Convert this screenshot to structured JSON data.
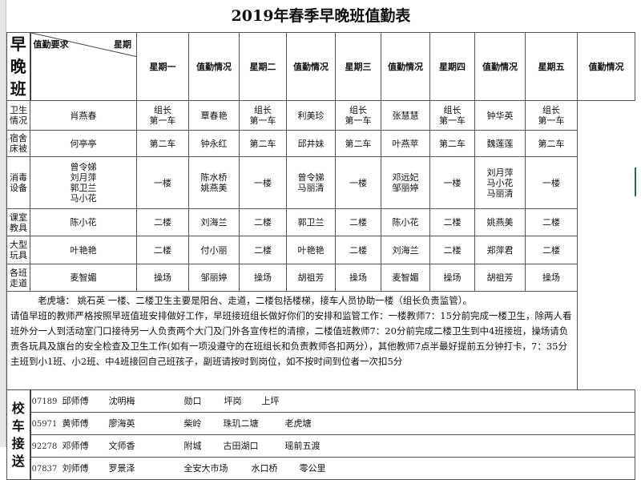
{
  "title": "2019年春季早晚班值勤表",
  "header": {
    "diag_left": "值勤要求",
    "diag_right": "星期",
    "columns": [
      "星期一",
      "值勤情况",
      "星期二",
      "值勤情况",
      "星期三",
      "值勤情况",
      "星期四",
      "值勤情况",
      "星期五",
      "值勤情况"
    ]
  },
  "section_label": "早晚班",
  "rows": [
    {
      "label": "卫生情况",
      "cells": [
        "肖燕春",
        "组长\n第一车",
        "覃春艳",
        "组长\n第一车",
        "利美珍",
        "组长\n第一车",
        "张慧慧",
        "组长\n第一车",
        "钟华英",
        "组长\n第一车"
      ]
    },
    {
      "label": "宿舍床被",
      "cells": [
        "何亭亭",
        "第二车",
        "钟永红",
        "第二车",
        "邱井妹",
        "第二车",
        "叶燕苹",
        "第二车",
        "魏莲莲",
        "第二车"
      ]
    },
    {
      "label": "消毒设备",
      "cells": [
        "曾令娣\n刘月萍\n郭卫兰\n马小花",
        "一楼",
        "陈水桥\n姚燕美",
        "一楼",
        "曾令娣\n马丽清",
        "一楼",
        "邓远妃\n邹丽婷",
        "一楼",
        "刘月萍\n马小花\n马丽清",
        "一楼"
      ]
    },
    {
      "label": "课室教具",
      "cells": [
        "陈小花",
        "二楼",
        "刘海兰",
        "二楼",
        "郭卫兰",
        "二楼",
        "陈小花",
        "二楼",
        "姚燕美",
        "二楼"
      ]
    },
    {
      "label": "大型玩具",
      "cells": [
        "叶艳艳",
        "二楼",
        "付小丽",
        "二楼",
        "叶艳艳",
        "二楼",
        "刘海兰",
        "二楼",
        "郑萍君",
        "二楼"
      ]
    },
    {
      "label": "各班走道",
      "cells": [
        "麦智媚",
        "操场",
        "邹丽婷",
        "操场",
        "胡祖芳",
        "操场",
        "麦智媚",
        "操场",
        "胡祖芳",
        "操场"
      ]
    }
  ],
  "notes": {
    "line1": "老虎塘：  姚石英        一楼、二楼卫生主要是阳台、走道，二楼包括楼梯，接车人员协助一楼（组长负责监管）。",
    "body": "请值早班的教师严格按照早班值班安排做好工作，早班接班组长做好你们的安排和监管工作：一楼教师7：15分前完成一楼卫生，除两人看班外分一人到活动室门口接待另一人负责两个大门及门外各宣传栏的清擦，二楼值班教师7：20分前完成二楼卫生到中4班接班，操场请负责各玩具及旗台的安全检查及卫生工作(如有一项没遵守的在班组长和负责教师各扣两分），其他教师7点半最好提前五分钟打卡，7：35分主班到小1班、小2班、中4班接回自己班孩子，副班请按时到岗位，如不按时间到位者一次扣5分"
  },
  "bus_label": "校车接送",
  "bus": [
    {
      "plate": "07189",
      "driver": "邱师傅",
      "teacher": "沈明梅",
      "stops": [
        "勋口",
        "坪岗",
        "上坪"
      ]
    },
    {
      "plate": "05971",
      "driver": "黄师傅",
      "teacher": "廖海英",
      "stops": [
        "柴岭",
        "珠玑二塘",
        "老虎塘"
      ]
    },
    {
      "plate": "92278",
      "driver": "邓师傅",
      "teacher": "文师香",
      "stops": [
        "附城",
        "古田湖口",
        "瑶前五渡"
      ]
    },
    {
      "plate": "07837",
      "driver": "刘师傅",
      "teacher": "罗景泽",
      "stops": [
        "全安大市场",
        "水口桥",
        "零公里"
      ]
    }
  ]
}
